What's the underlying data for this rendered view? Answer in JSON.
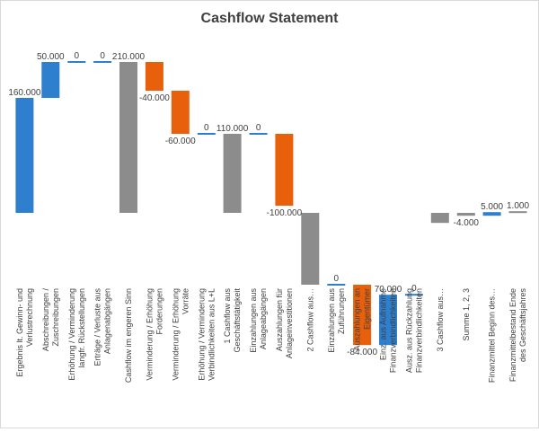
{
  "chart_data": {
    "type": "waterfall",
    "title": "Cashflow Statement",
    "xlabel": "",
    "ylabel": "",
    "ylim": [
      -100,
      220
    ],
    "grid": false,
    "legend": "none",
    "colors": {
      "increase": "#2e7fce",
      "decrease": "#e8600c",
      "total": "#8c8c8c"
    },
    "bars": [
      {
        "category": "Ergebnis lt. Gewinn- und Verlustrechnung",
        "value": 160,
        "label": "160.000",
        "kind": "increase"
      },
      {
        "category": "Abschreibungen / Zuschreibungen",
        "value": 50,
        "label": "50.000",
        "kind": "increase"
      },
      {
        "category": "Erhöhung / Verminderung langfr. Rückstellungen",
        "value": 0,
        "label": "0",
        "kind": "increase"
      },
      {
        "category": "Erträge / Verluste aus Anlagenabgängen",
        "value": 0,
        "label": "0",
        "kind": "increase"
      },
      {
        "category": "Cashflow im engeren Sinn",
        "value": 210,
        "label": "210.000",
        "kind": "total"
      },
      {
        "category": "Verminderung / Erhöhung Forderungen",
        "value": -40,
        "label": "-40.000",
        "kind": "decrease"
      },
      {
        "category": "Verminderung / Erhöhung Vorräte",
        "value": -60,
        "label": "-60.000",
        "kind": "decrease"
      },
      {
        "category": "Erhöhung / Verminderung Verbindlichkeiten aus L+L",
        "value": 0,
        "label": "0",
        "kind": "increase"
      },
      {
        "category": "1 Cashflow aus Geschäftstätigkeit",
        "value": 110,
        "label": "110.000",
        "kind": "total"
      },
      {
        "category": "Einzahlungen aus Anlageabgängen",
        "value": 0,
        "label": "0",
        "kind": "increase"
      },
      {
        "category": "Auszahlungen für Anlageinvestitionen",
        "value": -100,
        "label": "-100.000",
        "kind": "decrease"
      },
      {
        "category": "2 Cashflow aus…",
        "value": -100,
        "label": "",
        "kind": "total"
      },
      {
        "category": "Einzahlungen aus Zuführungen",
        "value": 0,
        "label": "0",
        "kind": "increase"
      },
      {
        "category": "Auszahlungen an Eigentümer",
        "value": -84,
        "label": "-84.000",
        "kind": "decrease"
      },
      {
        "category": "Einz. aus Aufnahme Finanzverbindlichkeiten",
        "value": 70,
        "label": "70.000",
        "kind": "increase"
      },
      {
        "category": "Ausz. aus Rückzahlung Finanzverbindlichkeiten",
        "value": 0,
        "label": "0",
        "kind": "increase"
      },
      {
        "category": "3 Cashflow aus…",
        "value": -14,
        "label": "",
        "kind": "total"
      },
      {
        "category": "Summe 1, 2, 3",
        "value": -4,
        "label": "-4.000",
        "kind": "total"
      },
      {
        "category": "Finanzmittel Beginn des…",
        "value": 5,
        "label": "5.000",
        "kind": "increase"
      },
      {
        "category": "Finanzmittelbestand Ende des Geschäftsjahres",
        "value": 1,
        "label": "1.000",
        "kind": "total"
      }
    ]
  }
}
